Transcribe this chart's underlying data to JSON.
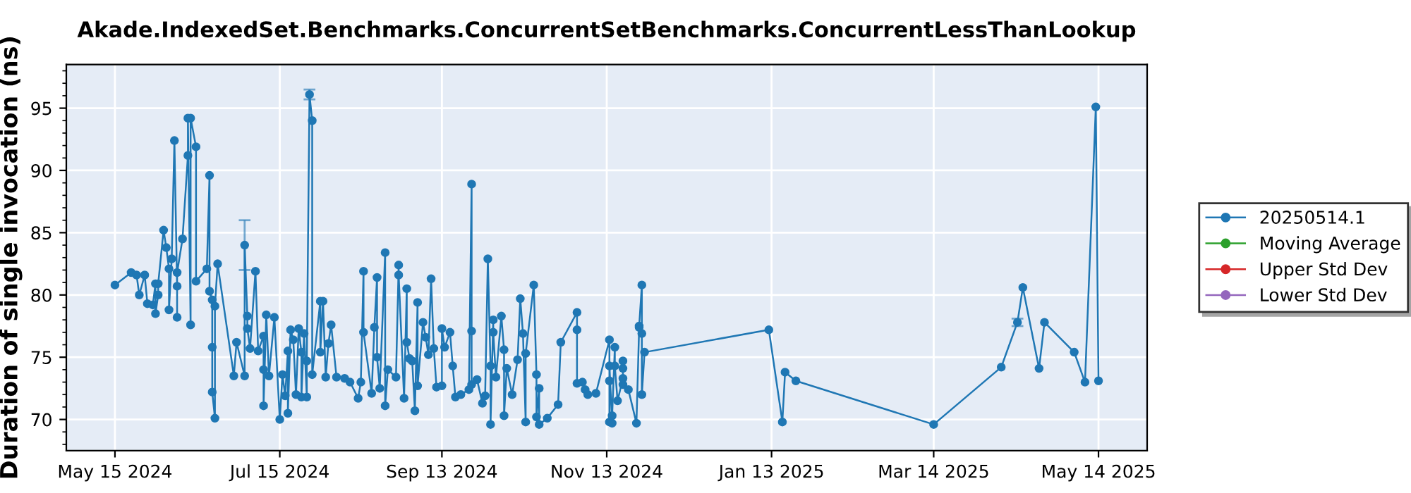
{
  "chart_data": {
    "type": "line",
    "title": "Akade.IndexedSet.Benchmarks.ConcurrentSetBenchmarks.ConcurrentLessThanLookup",
    "ylabel": "Duration of single invocation (ns)",
    "xlim": [
      "2024-04-27",
      "2025-06-01"
    ],
    "ylim": [
      67.5,
      98.5
    ],
    "xticks": [
      {
        "value": "2024-05-15",
        "label": "May 15 2024"
      },
      {
        "value": "2024-07-15",
        "label": "Jul 15 2024"
      },
      {
        "value": "2024-09-13",
        "label": "Sep 13 2024"
      },
      {
        "value": "2024-11-13",
        "label": "Nov 13 2024"
      },
      {
        "value": "2025-01-13",
        "label": "Jan 13 2025"
      },
      {
        "value": "2025-03-14",
        "label": "Mar 14 2025"
      },
      {
        "value": "2025-05-14",
        "label": "May 14 2025"
      }
    ],
    "yticks": [
      70,
      75,
      80,
      85,
      90,
      95
    ],
    "grid": true,
    "legend": "right",
    "marker": "circle",
    "line_style": "solid",
    "x": [
      "2024-05-15",
      "2024-05-21",
      "2024-05-23",
      "2024-05-24",
      "2024-05-26",
      "2024-05-27",
      "2024-05-29",
      "2024-05-30",
      "2024-05-30",
      "2024-05-31",
      "2024-05-31",
      "2024-06-02",
      "2024-06-03",
      "2024-06-04",
      "2024-06-04",
      "2024-06-05",
      "2024-06-06",
      "2024-06-07",
      "2024-06-07",
      "2024-06-07",
      "2024-06-09",
      "2024-06-11",
      "2024-06-11",
      "2024-06-12",
      "2024-06-12",
      "2024-06-14",
      "2024-06-14",
      "2024-06-18",
      "2024-06-19",
      "2024-06-19",
      "2024-06-20",
      "2024-06-20",
      "2024-06-20",
      "2024-06-21",
      "2024-06-21",
      "2024-06-22",
      "2024-06-28",
      "2024-06-29",
      "2024-07-02",
      "2024-07-02",
      "2024-07-03",
      "2024-07-03",
      "2024-07-04",
      "2024-07-06",
      "2024-07-07",
      "2024-07-09",
      "2024-07-09",
      "2024-07-09",
      "2024-07-10",
      "2024-07-11",
      "2024-07-13",
      "2024-07-15",
      "2024-07-16",
      "2024-07-17",
      "2024-07-18",
      "2024-07-18",
      "2024-07-19",
      "2024-07-20",
      "2024-07-21",
      "2024-07-22",
      "2024-07-23",
      "2024-07-23",
      "2024-07-24",
      "2024-07-25",
      "2024-07-25",
      "2024-07-26",
      "2024-07-27",
      "2024-07-27",
      "2024-07-30",
      "2024-07-30",
      "2024-07-31",
      "2024-08-01",
      "2024-08-02",
      "2024-08-03",
      "2024-08-05",
      "2024-08-08",
      "2024-08-10",
      "2024-08-13",
      "2024-08-14",
      "2024-08-15",
      "2024-08-15",
      "2024-08-18",
      "2024-08-19",
      "2024-08-20",
      "2024-08-20",
      "2024-08-21",
      "2024-08-23",
      "2024-08-23",
      "2024-08-24",
      "2024-08-27",
      "2024-08-28",
      "2024-08-28",
      "2024-08-30",
      "2024-08-31",
      "2024-08-31",
      "2024-09-01",
      "2024-09-02",
      "2024-09-03",
      "2024-09-04",
      "2024-09-04",
      "2024-09-06",
      "2024-09-07",
      "2024-09-08",
      "2024-09-09",
      "2024-09-10",
      "2024-09-11",
      "2024-09-13",
      "2024-09-13",
      "2024-09-14",
      "2024-09-16",
      "2024-09-17",
      "2024-09-18",
      "2024-09-20",
      "2024-09-23",
      "2024-09-24",
      "2024-09-24",
      "2024-09-24",
      "2024-09-26",
      "2024-09-28",
      "2024-09-29",
      "2024-09-30",
      "2024-10-01",
      "2024-10-01",
      "2024-10-02",
      "2024-10-02",
      "2024-10-03",
      "2024-10-05",
      "2024-10-06",
      "2024-10-06",
      "2024-10-07",
      "2024-10-09",
      "2024-10-11",
      "2024-10-12",
      "2024-10-13",
      "2024-10-14",
      "2024-10-14",
      "2024-10-17",
      "2024-10-18",
      "2024-10-18",
      "2024-10-19",
      "2024-10-19",
      "2024-10-22",
      "2024-10-26",
      "2024-10-27",
      "2024-11-02",
      "2024-11-02",
      "2024-11-02",
      "2024-11-04",
      "2024-11-05",
      "2024-11-06",
      "2024-11-09",
      "2024-11-14",
      "2024-11-14",
      "2024-11-14",
      "2024-11-14",
      "2024-11-15",
      "2024-11-15",
      "2024-11-16",
      "2024-11-16",
      "2024-11-17",
      "2024-11-19",
      "2024-11-19",
      "2024-11-19",
      "2024-11-19",
      "2024-11-21",
      "2024-11-24",
      "2024-11-25",
      "2024-11-25",
      "2024-11-26",
      "2024-11-26",
      "2024-11-26",
      "2024-11-27",
      "2025-01-12",
      "2025-01-17",
      "2025-01-18",
      "2025-01-22",
      "2025-03-14",
      "2025-04-08",
      "2025-04-14",
      "2025-04-16",
      "2025-04-22",
      "2025-04-24",
      "2025-05-05",
      "2025-05-09",
      "2025-05-13",
      "2025-05-14"
    ],
    "series": [
      {
        "name": "20250514.1",
        "color": "#1f77b4",
        "values": [
          80.8,
          81.8,
          81.6,
          80.0,
          81.6,
          79.3,
          79.2,
          80.9,
          78.5,
          80.0,
          80.9,
          85.2,
          83.8,
          82.1,
          78.8,
          82.9,
          92.4,
          80.7,
          78.2,
          81.8,
          84.5,
          91.2,
          94.2,
          77.6,
          94.2,
          91.9,
          81.1,
          82.1,
          89.6,
          80.3,
          79.6,
          75.8,
          72.2,
          70.1,
          79.1,
          82.5,
          73.5,
          76.2,
          73.5,
          84.0,
          78.3,
          77.3,
          75.7,
          81.9,
          75.5,
          76.7,
          74.0,
          71.1,
          78.4,
          73.5,
          78.2,
          70.0,
          73.6,
          71.9,
          75.5,
          70.5,
          77.2,
          76.4,
          72.0,
          77.3,
          75.4,
          71.8,
          76.9,
          71.8,
          74.7,
          96.1,
          94.0,
          73.6,
          79.5,
          75.4,
          79.5,
          73.4,
          76.1,
          77.6,
          73.4,
          73.3,
          73.0,
          71.7,
          73.0,
          81.9,
          77.0,
          72.1,
          77.4,
          81.4,
          75.0,
          72.5,
          83.4,
          71.1,
          74.0,
          73.4,
          82.4,
          81.6,
          71.7,
          80.5,
          76.2,
          74.9,
          74.7,
          70.7,
          79.4,
          72.7,
          77.8,
          76.6,
          75.2,
          81.3,
          75.7,
          72.6,
          72.7,
          77.3,
          75.8,
          77.0,
          74.3,
          71.8,
          72.0,
          72.4,
          88.9,
          77.1,
          72.8,
          73.2,
          71.3,
          71.9,
          82.9,
          74.3,
          69.6,
          78.0,
          77.0,
          73.4,
          78.3,
          75.6,
          70.3,
          74.1,
          72.0,
          74.8,
          79.7,
          76.9,
          69.8,
          75.3,
          80.8,
          73.6,
          70.2,
          72.5,
          69.6,
          70.1,
          71.2,
          76.2,
          78.6,
          77.2,
          72.9,
          73.0,
          72.4,
          72.0,
          72.1,
          76.4,
          69.8,
          73.1,
          74.3,
          69.7,
          70.3,
          75.8,
          74.3,
          71.5,
          73.3,
          74.1,
          74.7,
          72.8,
          72.4,
          69.7,
          77.4,
          77.5,
          80.8,
          76.9,
          72.0,
          75.4,
          77.2,
          69.8,
          73.8,
          73.1,
          69.6,
          74.2,
          77.8,
          80.6,
          74.1,
          77.8,
          75.4,
          73.0,
          95.1,
          73.1
        ],
        "errors": [
          null,
          null,
          null,
          null,
          null,
          null,
          null,
          null,
          null,
          null,
          null,
          null,
          null,
          null,
          null,
          null,
          null,
          null,
          null,
          null,
          null,
          null,
          null,
          null,
          null,
          null,
          null,
          null,
          null,
          null,
          null,
          null,
          null,
          null,
          null,
          null,
          null,
          null,
          null,
          2,
          null,
          null,
          null,
          null,
          null,
          null,
          null,
          null,
          null,
          null,
          null,
          null,
          null,
          null,
          null,
          null,
          null,
          null,
          null,
          null,
          null,
          null,
          null,
          null,
          null,
          0.4,
          null,
          null,
          null,
          null,
          null,
          null,
          null,
          null,
          null,
          null,
          null,
          null,
          null,
          null,
          null,
          null,
          null,
          null,
          null,
          null,
          null,
          null,
          null,
          null,
          null,
          null,
          null,
          null,
          null,
          null,
          null,
          null,
          null,
          null,
          null,
          null,
          null,
          null,
          null,
          null,
          null,
          null,
          null,
          null,
          null,
          null,
          null,
          null,
          null,
          null,
          null,
          null,
          null,
          null,
          null,
          null,
          null,
          null,
          null,
          null,
          null,
          null,
          null,
          null,
          null,
          null,
          null,
          null,
          null,
          null,
          null,
          null,
          null,
          null,
          null,
          null,
          null,
          null,
          null,
          null,
          null,
          null,
          null,
          null,
          null,
          null,
          null,
          null,
          null,
          null,
          null,
          null,
          null,
          null,
          null,
          null,
          null,
          null,
          null,
          null,
          null,
          null,
          null,
          null,
          null,
          null,
          null,
          null,
          null,
          null,
          null,
          null,
          0.3,
          null,
          null,
          null,
          null,
          null,
          null,
          null
        ]
      },
      {
        "name": "Moving Average",
        "color": "#2ca02c",
        "values": [
          null,
          null,
          null,
          null,
          null,
          null,
          null,
          null,
          null,
          null,
          null,
          null,
          null,
          null,
          null,
          null,
          null,
          null,
          null,
          null,
          null,
          null,
          null,
          null,
          null,
          null,
          null,
          null,
          null,
          null,
          null,
          null,
          null,
          null,
          null,
          null,
          null,
          null,
          null,
          null,
          null,
          null,
          null,
          null,
          null,
          null,
          null,
          null,
          null,
          null,
          null,
          null,
          null,
          null,
          null,
          null,
          null,
          null,
          null,
          null,
          null,
          null,
          null,
          null,
          null,
          null,
          null,
          null,
          null,
          null,
          null,
          null,
          null,
          null,
          null,
          null,
          null,
          null,
          null,
          null,
          null,
          null,
          null,
          null,
          null,
          null,
          null,
          null,
          null,
          null,
          null,
          null,
          null,
          null,
          null,
          null,
          null,
          null,
          null,
          null,
          null,
          null,
          null,
          null,
          null,
          null,
          null,
          null,
          null,
          null,
          null,
          null,
          null,
          null,
          null,
          null,
          null,
          null,
          null,
          null,
          null,
          null,
          null,
          null,
          null,
          null,
          null,
          null,
          null,
          null,
          null,
          null,
          null,
          null,
          null,
          null,
          null,
          null,
          null,
          null,
          null,
          null,
          null,
          null,
          null,
          null,
          null,
          null,
          null,
          null,
          null,
          null,
          null,
          null,
          null,
          null,
          null,
          null,
          null,
          null,
          null,
          null,
          null,
          null,
          null,
          null,
          null,
          null,
          null,
          null,
          null,
          null,
          null,
          null,
          null,
          null,
          null,
          null,
          null,
          null,
          null,
          null,
          null,
          null,
          null,
          null
        ]
      },
      {
        "name": "Upper Std Dev",
        "color": "#d62728",
        "values": [
          null,
          null,
          null,
          null,
          null,
          null,
          null,
          null,
          null,
          null,
          null,
          null,
          null,
          null,
          null,
          null,
          null,
          null,
          null,
          null,
          null,
          null,
          null,
          null,
          null,
          null,
          null,
          null,
          null,
          null,
          null,
          null,
          null,
          null,
          null,
          null,
          null,
          null,
          null,
          null,
          null,
          null,
          null,
          null,
          null,
          null,
          null,
          null,
          null,
          null,
          null,
          null,
          null,
          null,
          null,
          null,
          null,
          null,
          null,
          null,
          null,
          null,
          null,
          null,
          null,
          null,
          null,
          null,
          null,
          null,
          null,
          null,
          null,
          null,
          null,
          null,
          null,
          null,
          null,
          null,
          null,
          null,
          null,
          null,
          null,
          null,
          null,
          null,
          null,
          null,
          null,
          null,
          null,
          null,
          null,
          null,
          null,
          null,
          null,
          null,
          null,
          null,
          null,
          null,
          null,
          null,
          null,
          null,
          null,
          null,
          null,
          null,
          null,
          null,
          null,
          null,
          null,
          null,
          null,
          null,
          null,
          null,
          null,
          null,
          null,
          null,
          null,
          null,
          null,
          null,
          null,
          null,
          null,
          null,
          null,
          null,
          null,
          null,
          null,
          null,
          null,
          null,
          null,
          null,
          null,
          null,
          null,
          null,
          null,
          null,
          null,
          null,
          null,
          null,
          null,
          null,
          null,
          null,
          null,
          null,
          null,
          null,
          null,
          null,
          null,
          null,
          null,
          null,
          null,
          null,
          null,
          null,
          null,
          null,
          null,
          null,
          null,
          null,
          null,
          null,
          null,
          null,
          null,
          null,
          null,
          null
        ]
      },
      {
        "name": "Lower Std Dev",
        "color": "#9467bd",
        "values": [
          null,
          null,
          null,
          null,
          null,
          null,
          null,
          null,
          null,
          null,
          null,
          null,
          null,
          null,
          null,
          null,
          null,
          null,
          null,
          null,
          null,
          null,
          null,
          null,
          null,
          null,
          null,
          null,
          null,
          null,
          null,
          null,
          null,
          null,
          null,
          null,
          null,
          null,
          null,
          null,
          null,
          null,
          null,
          null,
          null,
          null,
          null,
          null,
          null,
          null,
          null,
          null,
          null,
          null,
          null,
          null,
          null,
          null,
          null,
          null,
          null,
          null,
          null,
          null,
          null,
          null,
          null,
          null,
          null,
          null,
          null,
          null,
          null,
          null,
          null,
          null,
          null,
          null,
          null,
          null,
          null,
          null,
          null,
          null,
          null,
          null,
          null,
          null,
          null,
          null,
          null,
          null,
          null,
          null,
          null,
          null,
          null,
          null,
          null,
          null,
          null,
          null,
          null,
          null,
          null,
          null,
          null,
          null,
          null,
          null,
          null,
          null,
          null,
          null,
          null,
          null,
          null,
          null,
          null,
          null,
          null,
          null,
          null,
          null,
          null,
          null,
          null,
          null,
          null,
          null,
          null,
          null,
          null,
          null,
          null,
          null,
          null,
          null,
          null,
          null,
          null,
          null,
          null,
          null,
          null,
          null,
          null,
          null,
          null,
          null,
          null,
          null,
          null,
          null,
          null,
          null,
          null,
          null,
          null,
          null,
          null,
          null,
          null,
          null,
          null,
          null,
          null,
          null,
          null,
          null,
          null,
          null,
          null,
          null,
          null,
          null,
          null,
          null,
          null,
          null,
          null,
          null,
          null,
          null,
          null,
          null
        ]
      }
    ]
  }
}
